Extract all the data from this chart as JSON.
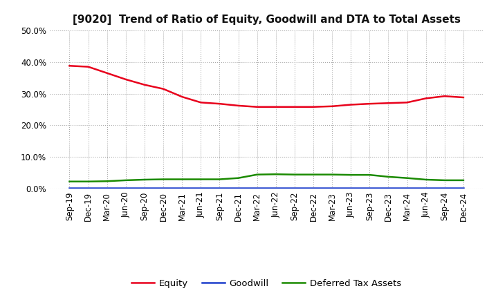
{
  "title": "[9020]  Trend of Ratio of Equity, Goodwill and DTA to Total Assets",
  "x_labels": [
    "Sep-19",
    "Dec-19",
    "Mar-20",
    "Jun-20",
    "Sep-20",
    "Dec-20",
    "Mar-21",
    "Jun-21",
    "Sep-21",
    "Dec-21",
    "Mar-22",
    "Jun-22",
    "Sep-22",
    "Dec-22",
    "Mar-23",
    "Jun-23",
    "Sep-23",
    "Dec-23",
    "Mar-24",
    "Jun-24",
    "Sep-24",
    "Dec-24"
  ],
  "equity": [
    0.388,
    0.385,
    0.365,
    0.345,
    0.328,
    0.315,
    0.29,
    0.272,
    0.268,
    0.262,
    0.258,
    0.258,
    0.258,
    0.258,
    0.26,
    0.265,
    0.268,
    0.27,
    0.272,
    0.285,
    0.292,
    0.288
  ],
  "goodwill": [
    0.001,
    0.001,
    0.001,
    0.001,
    0.001,
    0.001,
    0.001,
    0.001,
    0.001,
    0.001,
    0.001,
    0.001,
    0.001,
    0.001,
    0.001,
    0.001,
    0.001,
    0.001,
    0.001,
    0.001,
    0.001,
    0.001
  ],
  "dta": [
    0.022,
    0.022,
    0.023,
    0.026,
    0.028,
    0.029,
    0.029,
    0.029,
    0.029,
    0.033,
    0.044,
    0.045,
    0.044,
    0.044,
    0.044,
    0.043,
    0.043,
    0.037,
    0.033,
    0.028,
    0.026,
    0.026
  ],
  "equity_color": "#e8001c",
  "goodwill_color": "#1e3fcc",
  "dta_color": "#1a8a00",
  "ylim": [
    0.0,
    0.5
  ],
  "yticks": [
    0.0,
    0.1,
    0.2,
    0.3,
    0.4,
    0.5
  ],
  "background_color": "#ffffff",
  "grid_color": "#aaaaaa",
  "legend_labels": [
    "Equity",
    "Goodwill",
    "Deferred Tax Assets"
  ],
  "title_fontsize": 11,
  "tick_fontsize": 8.5
}
